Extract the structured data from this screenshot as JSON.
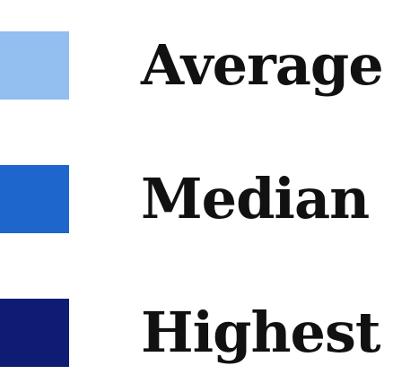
{
  "chart_data": {
    "type": "legend",
    "legend": [
      {
        "label": "Average",
        "color": "#92BEF0"
      },
      {
        "label": "Median",
        "color": "#1E66CC"
      },
      {
        "label": "Highest",
        "color": "#0E1D73"
      }
    ]
  }
}
